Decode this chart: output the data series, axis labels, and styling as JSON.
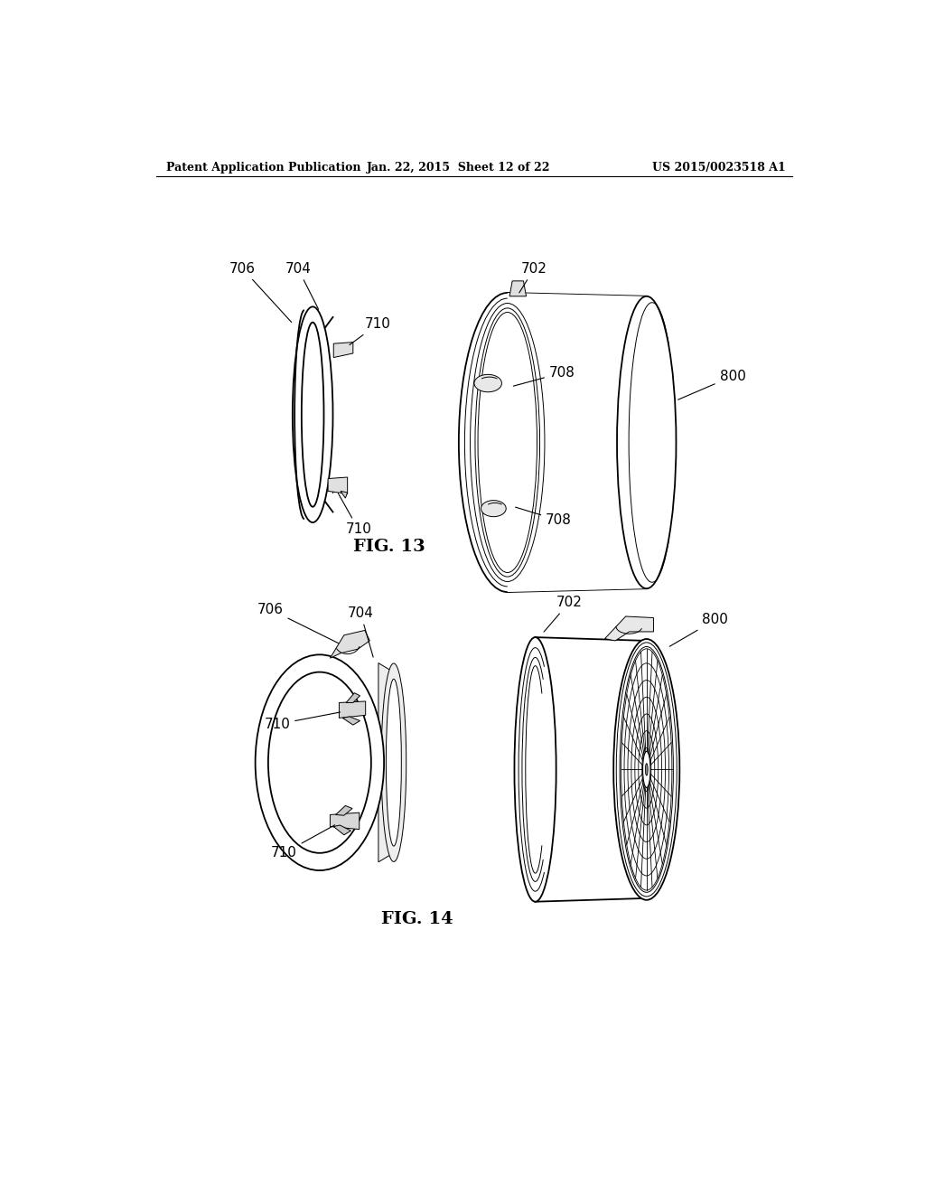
{
  "background_color": "#ffffff",
  "header_left": "Patent Application Publication",
  "header_center": "Jan. 22, 2015  Sheet 12 of 22",
  "header_right": "US 2015/0023518 A1",
  "fig13_label": "FIG. 13",
  "fig14_label": "FIG. 14",
  "line_color": "#000000",
  "lw_main": 1.3,
  "lw_thin": 0.7,
  "label_fontsize": 11
}
